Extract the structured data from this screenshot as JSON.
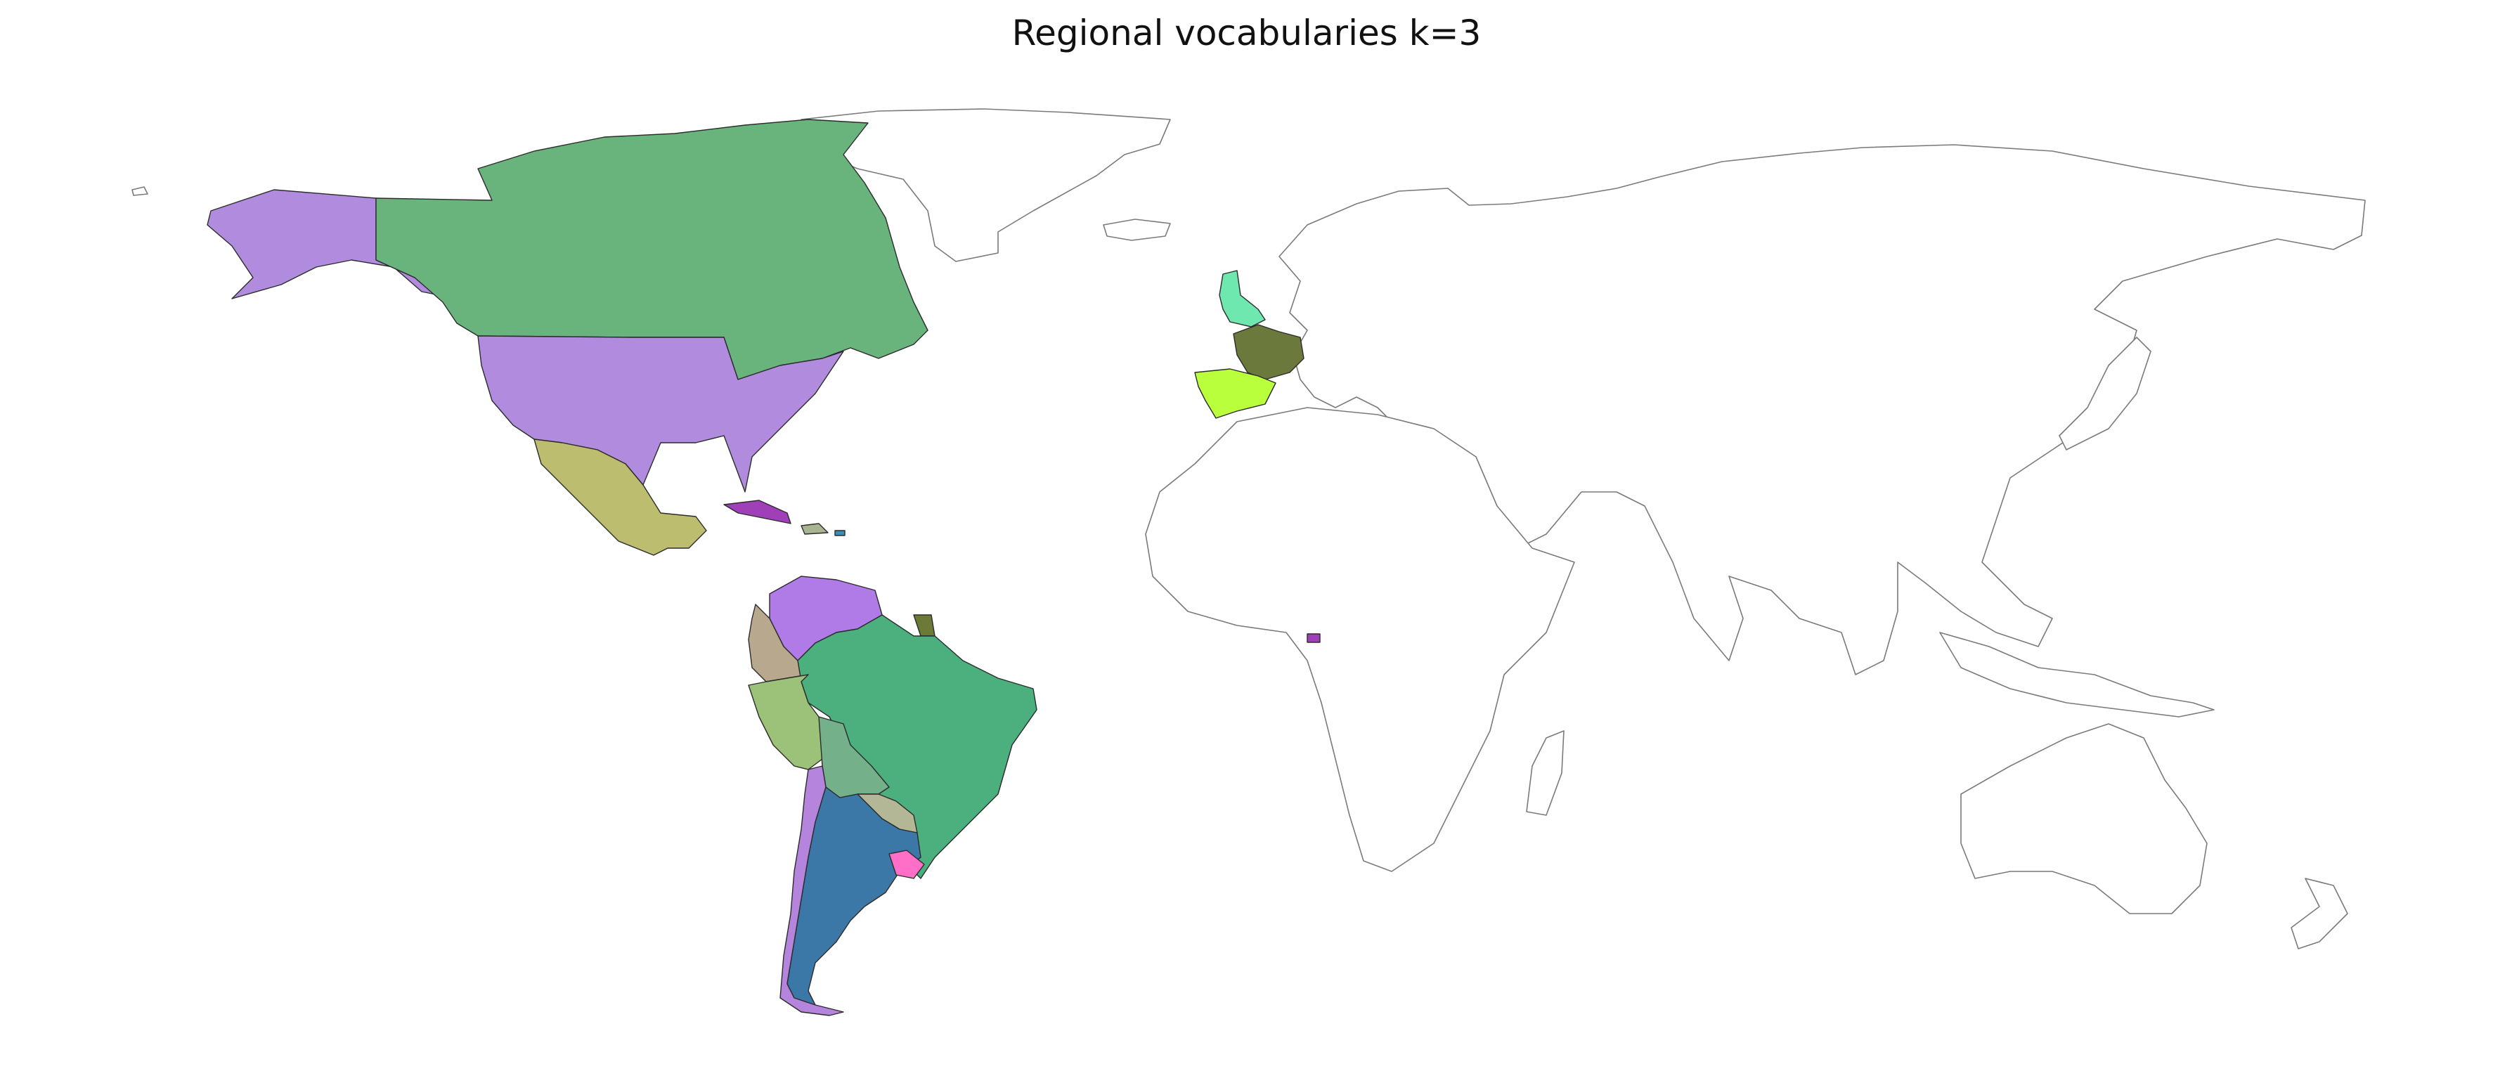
{
  "title": "Regional vocabularies k=3",
  "palette": {
    "outline": "#7a7a7a",
    "unassigned_fill": "#ffffff"
  },
  "regions": [
    {
      "id": "alaska",
      "color": "#b18cde"
    },
    {
      "id": "canada",
      "color": "#69b37c"
    },
    {
      "id": "usa",
      "color": "#b18cde"
    },
    {
      "id": "mexico",
      "color": "#bcbd6e"
    },
    {
      "id": "central-america",
      "color": "#5dc29c"
    },
    {
      "id": "cuba",
      "color": "#a040b8"
    },
    {
      "id": "caribbean",
      "color": "#a9b590"
    },
    {
      "id": "puerto-rico",
      "color": "#3a8fb8"
    },
    {
      "id": "venezuela",
      "color": "#b07be6"
    },
    {
      "id": "colombia",
      "color": "#b8a98e"
    },
    {
      "id": "guiana",
      "color": "#6b7a36"
    },
    {
      "id": "brazil",
      "color": "#4caf7e"
    },
    {
      "id": "peru",
      "color": "#9cc27a"
    },
    {
      "id": "bolivia",
      "color": "#74b08a"
    },
    {
      "id": "paraguay",
      "color": "#b3b796"
    },
    {
      "id": "chile",
      "color": "#b585dd"
    },
    {
      "id": "argentina",
      "color": "#3b78a8"
    },
    {
      "id": "uruguay",
      "color": "#ff6ec7"
    },
    {
      "id": "united-kingdom",
      "color": "#6fe8b0"
    },
    {
      "id": "france",
      "color": "#6b7a3c"
    },
    {
      "id": "spain",
      "color": "#b9ff3c"
    },
    {
      "id": "equatorial-guinea",
      "color": "#a040b8"
    }
  ]
}
